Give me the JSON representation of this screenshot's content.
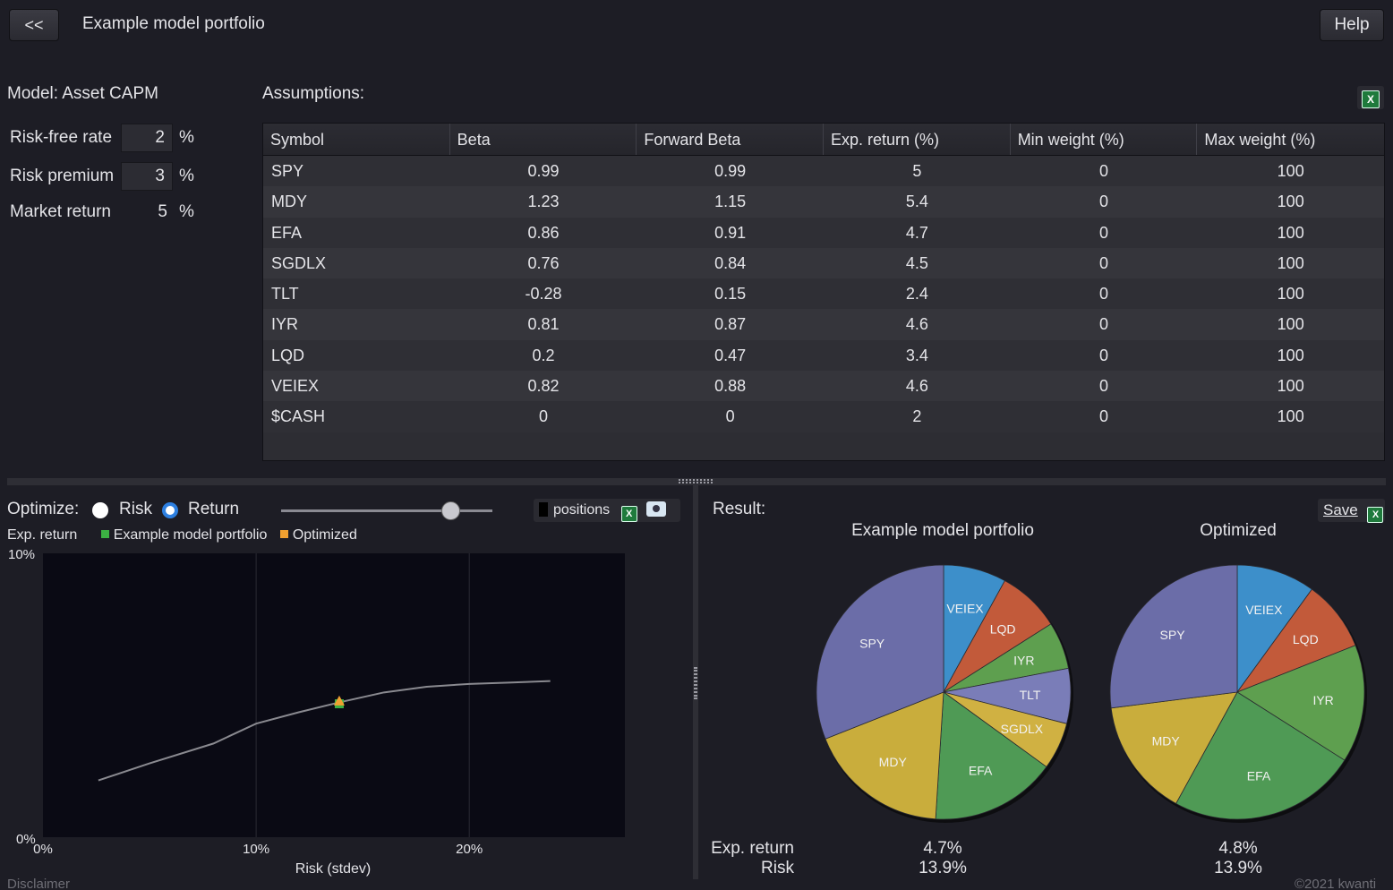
{
  "header": {
    "back_label": "<<",
    "title": "Example model portfolio",
    "help_label": "Help"
  },
  "model": {
    "label": "Model: Asset CAPM",
    "params": [
      {
        "label": "Risk-free rate",
        "value": "2",
        "unit": "%"
      },
      {
        "label": "Risk premium",
        "value": "3",
        "unit": "%"
      },
      {
        "label": "Market return",
        "value": "5",
        "unit": "%"
      }
    ]
  },
  "assumptions": {
    "label": "Assumptions:",
    "columns": [
      "Symbol",
      "Beta",
      "Forward Beta",
      "Exp. return (%)",
      "Min weight (%)",
      "Max weight (%)"
    ],
    "rows": [
      [
        "SPY",
        "0.99",
        "0.99",
        "5",
        "0",
        "100"
      ],
      [
        "MDY",
        "1.23",
        "1.15",
        "5.4",
        "0",
        "100"
      ],
      [
        "EFA",
        "0.86",
        "0.91",
        "4.7",
        "0",
        "100"
      ],
      [
        "SGDLX",
        "0.76",
        "0.84",
        "4.5",
        "0",
        "100"
      ],
      [
        "TLT",
        "-0.28",
        "0.15",
        "2.4",
        "0",
        "100"
      ],
      [
        "IYR",
        "0.81",
        "0.87",
        "4.6",
        "0",
        "100"
      ],
      [
        "LQD",
        "0.2",
        "0.47",
        "3.4",
        "0",
        "100"
      ],
      [
        "VEIEX",
        "0.82",
        "0.88",
        "4.6",
        "0",
        "100"
      ],
      [
        "$CASH",
        "0",
        "0",
        "2",
        "0",
        "100"
      ]
    ]
  },
  "optimize": {
    "label": "Optimize:",
    "options": [
      "Risk",
      "Return"
    ],
    "selected": "Return",
    "slider_fraction": 0.8,
    "positions_label": "positions"
  },
  "frontier": {
    "ylabel": "Exp. return",
    "xlabel": "Risk (stdev)",
    "legend": [
      {
        "name": "Example model portfolio",
        "color": "#3cb043"
      },
      {
        "name": "Optimized",
        "color": "#f0a030"
      }
    ],
    "x_ticks": [
      "0%",
      "10%",
      "20%"
    ],
    "y_ticks": [
      "0%",
      "10%"
    ]
  },
  "chart_data": {
    "type": "line",
    "xlabel": "Risk (stdev)",
    "ylabel": "Exp. return",
    "xlim": [
      0,
      27.3
    ],
    "ylim": [
      0,
      10
    ],
    "series": [
      {
        "x": [
          2.6,
          5,
          8,
          10,
          12,
          13.9,
          16,
          18,
          20,
          22,
          23.8
        ],
        "y": [
          2.0,
          2.6,
          3.3,
          4.0,
          4.4,
          4.75,
          5.1,
          5.3,
          5.4,
          5.45,
          5.5
        ]
      }
    ],
    "points": [
      {
        "name": "Example model portfolio",
        "x": 13.9,
        "y": 4.7,
        "color": "#3cb043"
      },
      {
        "name": "Optimized",
        "x": 13.9,
        "y": 4.8,
        "color": "#f0a030"
      }
    ]
  },
  "result": {
    "label": "Result:",
    "save_label": "Save",
    "portfolios": [
      {
        "title": "Example model portfolio",
        "exp_return": "4.7%",
        "risk": "13.9%",
        "slices": [
          {
            "name": "VEIEX",
            "value": 8,
            "color": "#3d8fca"
          },
          {
            "name": "LQD",
            "value": 8,
            "color": "#c25a3a"
          },
          {
            "name": "IYR",
            "value": 6,
            "color": "#5e9f4f"
          },
          {
            "name": "TLT",
            "value": 7,
            "color": "#7a7db8"
          },
          {
            "name": "SGDLX",
            "value": 6,
            "color": "#d0b142"
          },
          {
            "name": "EFA",
            "value": 16,
            "color": "#4f9a55"
          },
          {
            "name": "MDY",
            "value": 18,
            "color": "#c9ad3c"
          },
          {
            "name": "SPY",
            "value": 31,
            "color": "#6b6da8"
          }
        ]
      },
      {
        "title": "Optimized",
        "exp_return": "4.8%",
        "risk": "13.9%",
        "slices": [
          {
            "name": "VEIEX",
            "value": 10,
            "color": "#3d8fca"
          },
          {
            "name": "LQD",
            "value": 9,
            "color": "#c25a3a"
          },
          {
            "name": "IYR",
            "value": 15,
            "color": "#5e9f4f"
          },
          {
            "name": "EFA",
            "value": 24,
            "color": "#4f9a55"
          },
          {
            "name": "MDY",
            "value": 15,
            "color": "#c9ad3c"
          },
          {
            "name": "SPY",
            "value": 27,
            "color": "#6b6da8"
          }
        ]
      }
    ],
    "stat_labels": [
      "Exp. return",
      "Risk"
    ]
  },
  "footer": {
    "disclaimer": "Disclaimer",
    "copyright": "©2021 kwanti"
  }
}
